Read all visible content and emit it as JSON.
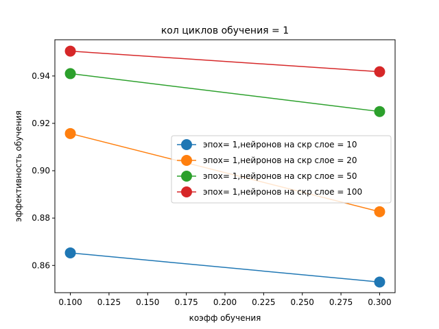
{
  "chart_data": {
    "type": "line",
    "title": "кол циклов обучения = 1",
    "xlabel": "коэфф обучения",
    "ylabel": "эффективность обучения",
    "xlim": [
      0.09,
      0.31
    ],
    "ylim": [
      0.8485,
      0.9553
    ],
    "xticks": [
      "0.100",
      "0.125",
      "0.150",
      "0.175",
      "0.200",
      "0.225",
      "0.250",
      "0.275",
      "0.300"
    ],
    "yticks": [
      "0.86",
      "0.88",
      "0.90",
      "0.92",
      "0.94"
    ],
    "grid": false,
    "legend_position": "center-right",
    "x": [
      0.1,
      0.3
    ],
    "series": [
      {
        "name": "эпох= 1,нейронов на скр слое = 10",
        "color": "#1f77b4",
        "values": [
          0.8653,
          0.853
        ]
      },
      {
        "name": "эпох= 1,нейронов на скр слое = 20",
        "color": "#ff7f0e",
        "values": [
          0.9157,
          0.8827
        ]
      },
      {
        "name": "эпох= 1,нейронов на скр слое = 50",
        "color": "#2ca02c",
        "values": [
          0.941,
          0.925
        ]
      },
      {
        "name": "эпох= 1,нейронов на скр слое = 100",
        "color": "#d62728",
        "values": [
          0.9505,
          0.9418
        ]
      }
    ]
  }
}
